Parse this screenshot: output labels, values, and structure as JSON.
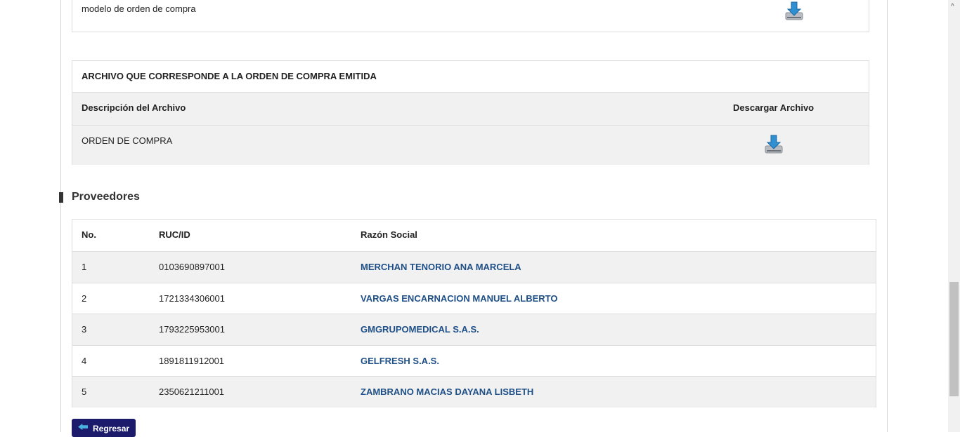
{
  "top_box": {
    "text": "modelo de orden de compra",
    "icon": "download-icon"
  },
  "archivo": {
    "title": "ARCHIVO QUE CORRESPONDE A LA ORDEN DE COMPRA EMITIDA",
    "col_desc": "Descripción del Archivo",
    "col_download": "Descargar Archivo",
    "rows": [
      {
        "desc": "ORDEN DE COMPRA",
        "icon": "download-icon"
      }
    ]
  },
  "proveedores": {
    "heading": "Proveedores",
    "columns": [
      "No.",
      "RUC/ID",
      "Razón Social"
    ],
    "rows": [
      {
        "no": "1",
        "ruc": "0103690897001",
        "razon": "MERCHAN TENORIO ANA MARCELA"
      },
      {
        "no": "2",
        "ruc": "1721334306001",
        "razon": "VARGAS ENCARNACION MANUEL ALBERTO"
      },
      {
        "no": "3",
        "ruc": "1793225953001",
        "razon": "GMGRUPOMEDICAL S.A.S."
      },
      {
        "no": "4",
        "ruc": "1891811912001",
        "razon": "GELFRESH S.A.S."
      },
      {
        "no": "5",
        "ruc": "2350621211001",
        "razon": "ZAMBRANO MACIAS DAYANA LISBETH"
      }
    ]
  },
  "back_button": {
    "label": "Regresar"
  },
  "colors": {
    "link": "#1e4f87",
    "button": "#1b1a6b",
    "row_alt": "#f1f1f1"
  }
}
